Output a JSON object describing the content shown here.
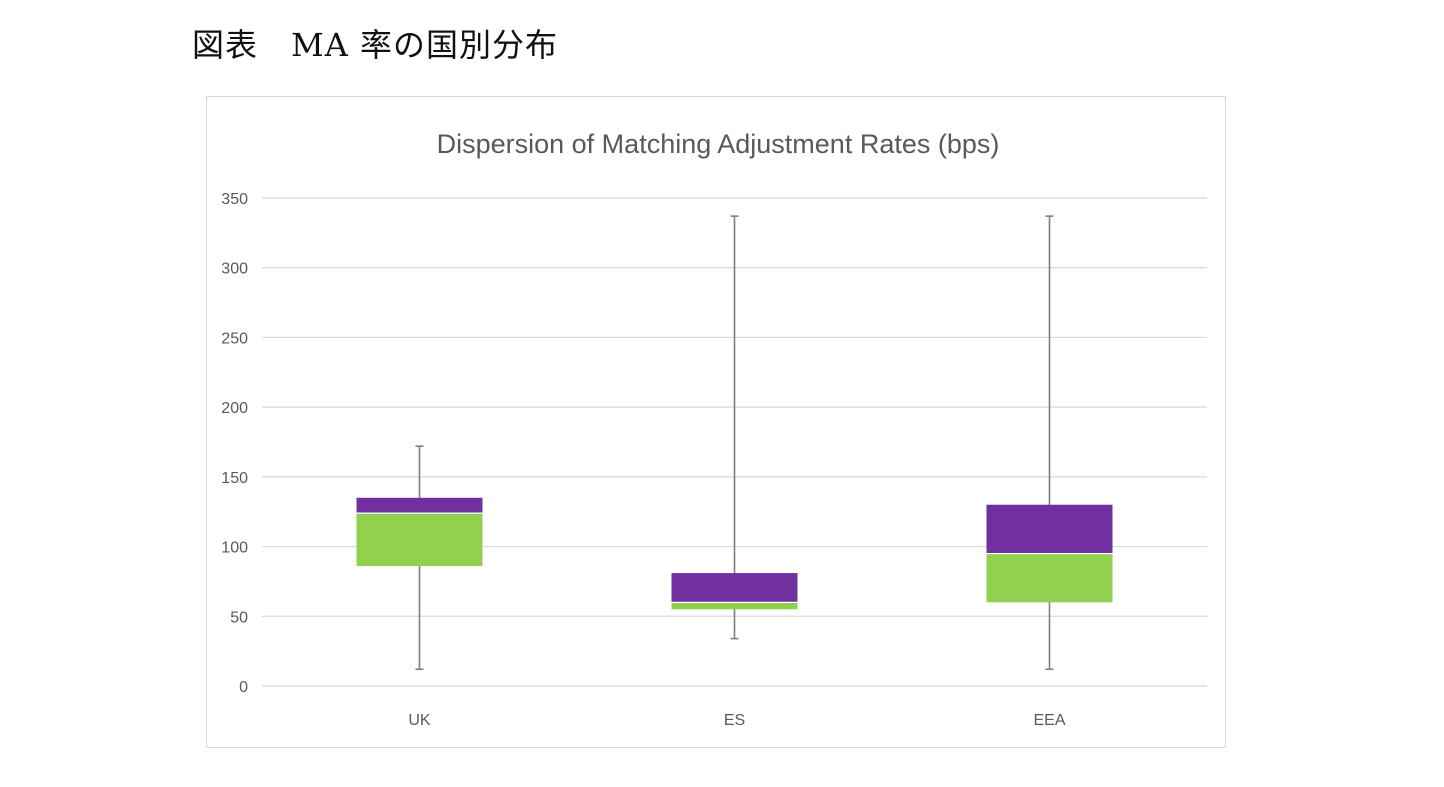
{
  "caption": "図表　MA 率の国別分布",
  "chart_data": {
    "type": "box",
    "title": "Dispersion of Matching Adjustment Rates (bps)",
    "xlabel": "",
    "ylabel": "",
    "ylim": [
      0,
      350
    ],
    "yticks": [
      0,
      50,
      100,
      150,
      200,
      250,
      300,
      350
    ],
    "grid": true,
    "legend": "none",
    "categories": [
      "UK",
      "ES",
      "EEA"
    ],
    "boxes": [
      {
        "category": "UK",
        "min": 12,
        "q1": 86,
        "median": 124,
        "q3": 135,
        "max": 172
      },
      {
        "category": "ES",
        "min": 34,
        "q1": 55,
        "median": 60,
        "q3": 81,
        "max": 337
      },
      {
        "category": "EEA",
        "min": 12,
        "q1": 60,
        "median": 95,
        "q3": 130,
        "max": 337
      }
    ],
    "colors": {
      "lower_box": "#92d050",
      "upper_box": "#7030a0",
      "whisker": "#7f7f7f",
      "grid": "#d9d9d9",
      "text": "#595959"
    }
  }
}
